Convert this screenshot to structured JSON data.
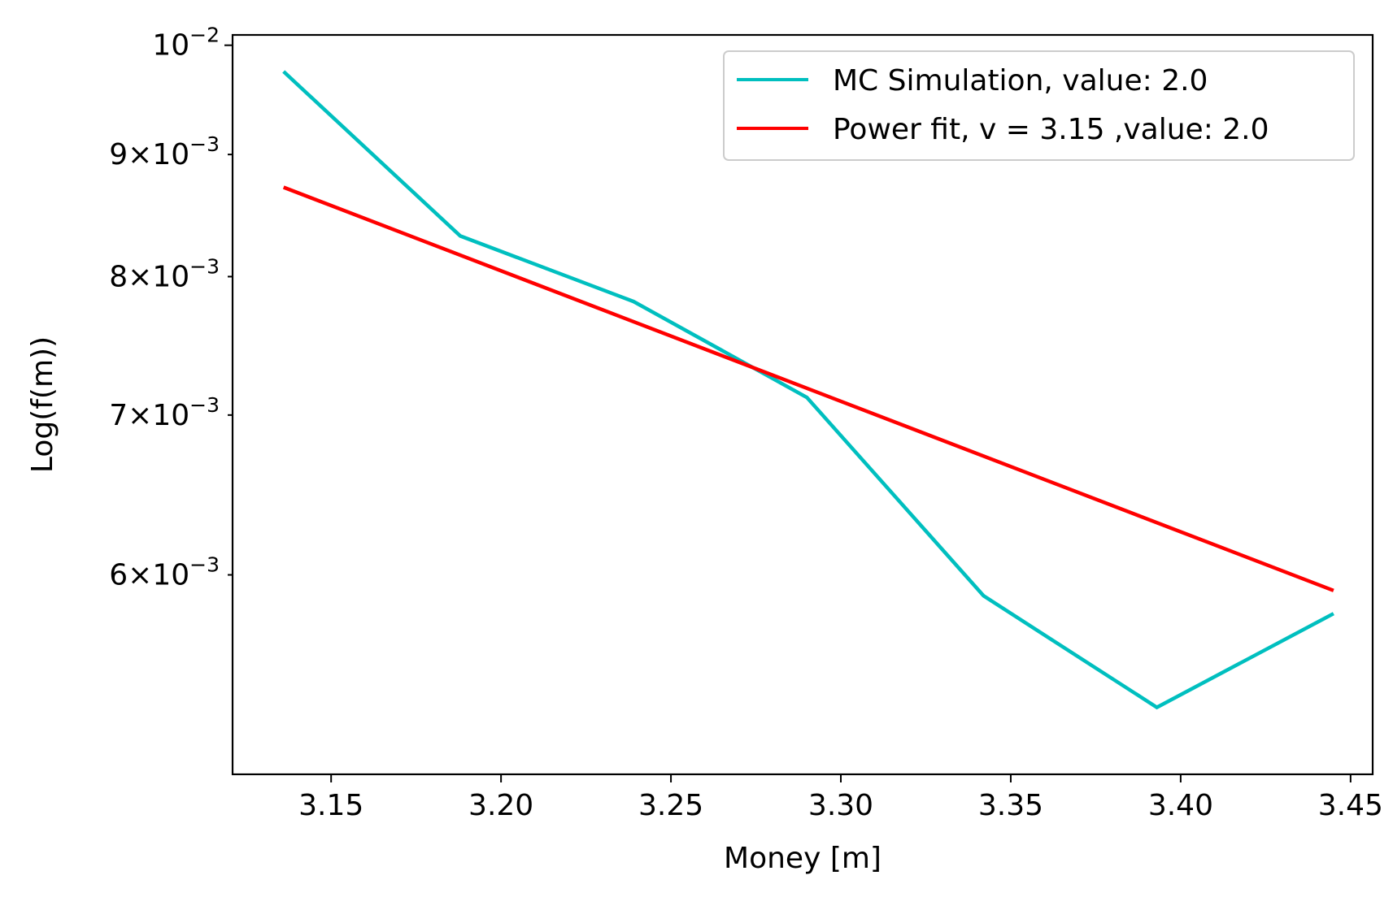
{
  "chart_data": {
    "type": "line",
    "xlabel": "Money [m]",
    "ylabel": "Log(f(m))",
    "yscale": "log",
    "xlim": [
      3.121,
      3.4565
    ],
    "ylim": [
      0.00495,
      0.0101
    ],
    "grid": false,
    "legend_position": "top-right",
    "x_ticks": [
      {
        "value": 3.15,
        "label": "3.15"
      },
      {
        "value": 3.2,
        "label": "3.20"
      },
      {
        "value": 3.25,
        "label": "3.25"
      },
      {
        "value": 3.3,
        "label": "3.30"
      },
      {
        "value": 3.35,
        "label": "3.35"
      },
      {
        "value": 3.4,
        "label": "3.40"
      },
      {
        "value": 3.45,
        "label": "3.45"
      }
    ],
    "y_ticks": [
      {
        "value": 0.006,
        "mantissa": "6",
        "times": "×",
        "base": "10",
        "exponent": "−3"
      },
      {
        "value": 0.007,
        "mantissa": "7",
        "times": "×",
        "base": "10",
        "exponent": "−3"
      },
      {
        "value": 0.008,
        "mantissa": "8",
        "times": "×",
        "base": "10",
        "exponent": "−3"
      },
      {
        "value": 0.009,
        "mantissa": "9",
        "times": "×",
        "base": "10",
        "exponent": "−3"
      },
      {
        "value": 0.01,
        "mantissa": "",
        "times": "",
        "base": "10",
        "exponent": "−2"
      }
    ],
    "series": [
      {
        "name": "MC Simulation, value: 2.0",
        "color": "#00bfbf",
        "x": [
          3.136,
          3.188,
          3.239,
          3.29,
          3.342,
          3.393,
          3.445
        ],
        "y": [
          0.00975,
          0.00832,
          0.00781,
          0.00712,
          0.00588,
          0.00528,
          0.00578
        ]
      },
      {
        "name": "Power fit, v = 3.15 ,value: 2.0",
        "color": "#ff0000",
        "x": [
          3.136,
          3.445
        ],
        "y": [
          0.00872,
          0.00591
        ]
      }
    ]
  }
}
